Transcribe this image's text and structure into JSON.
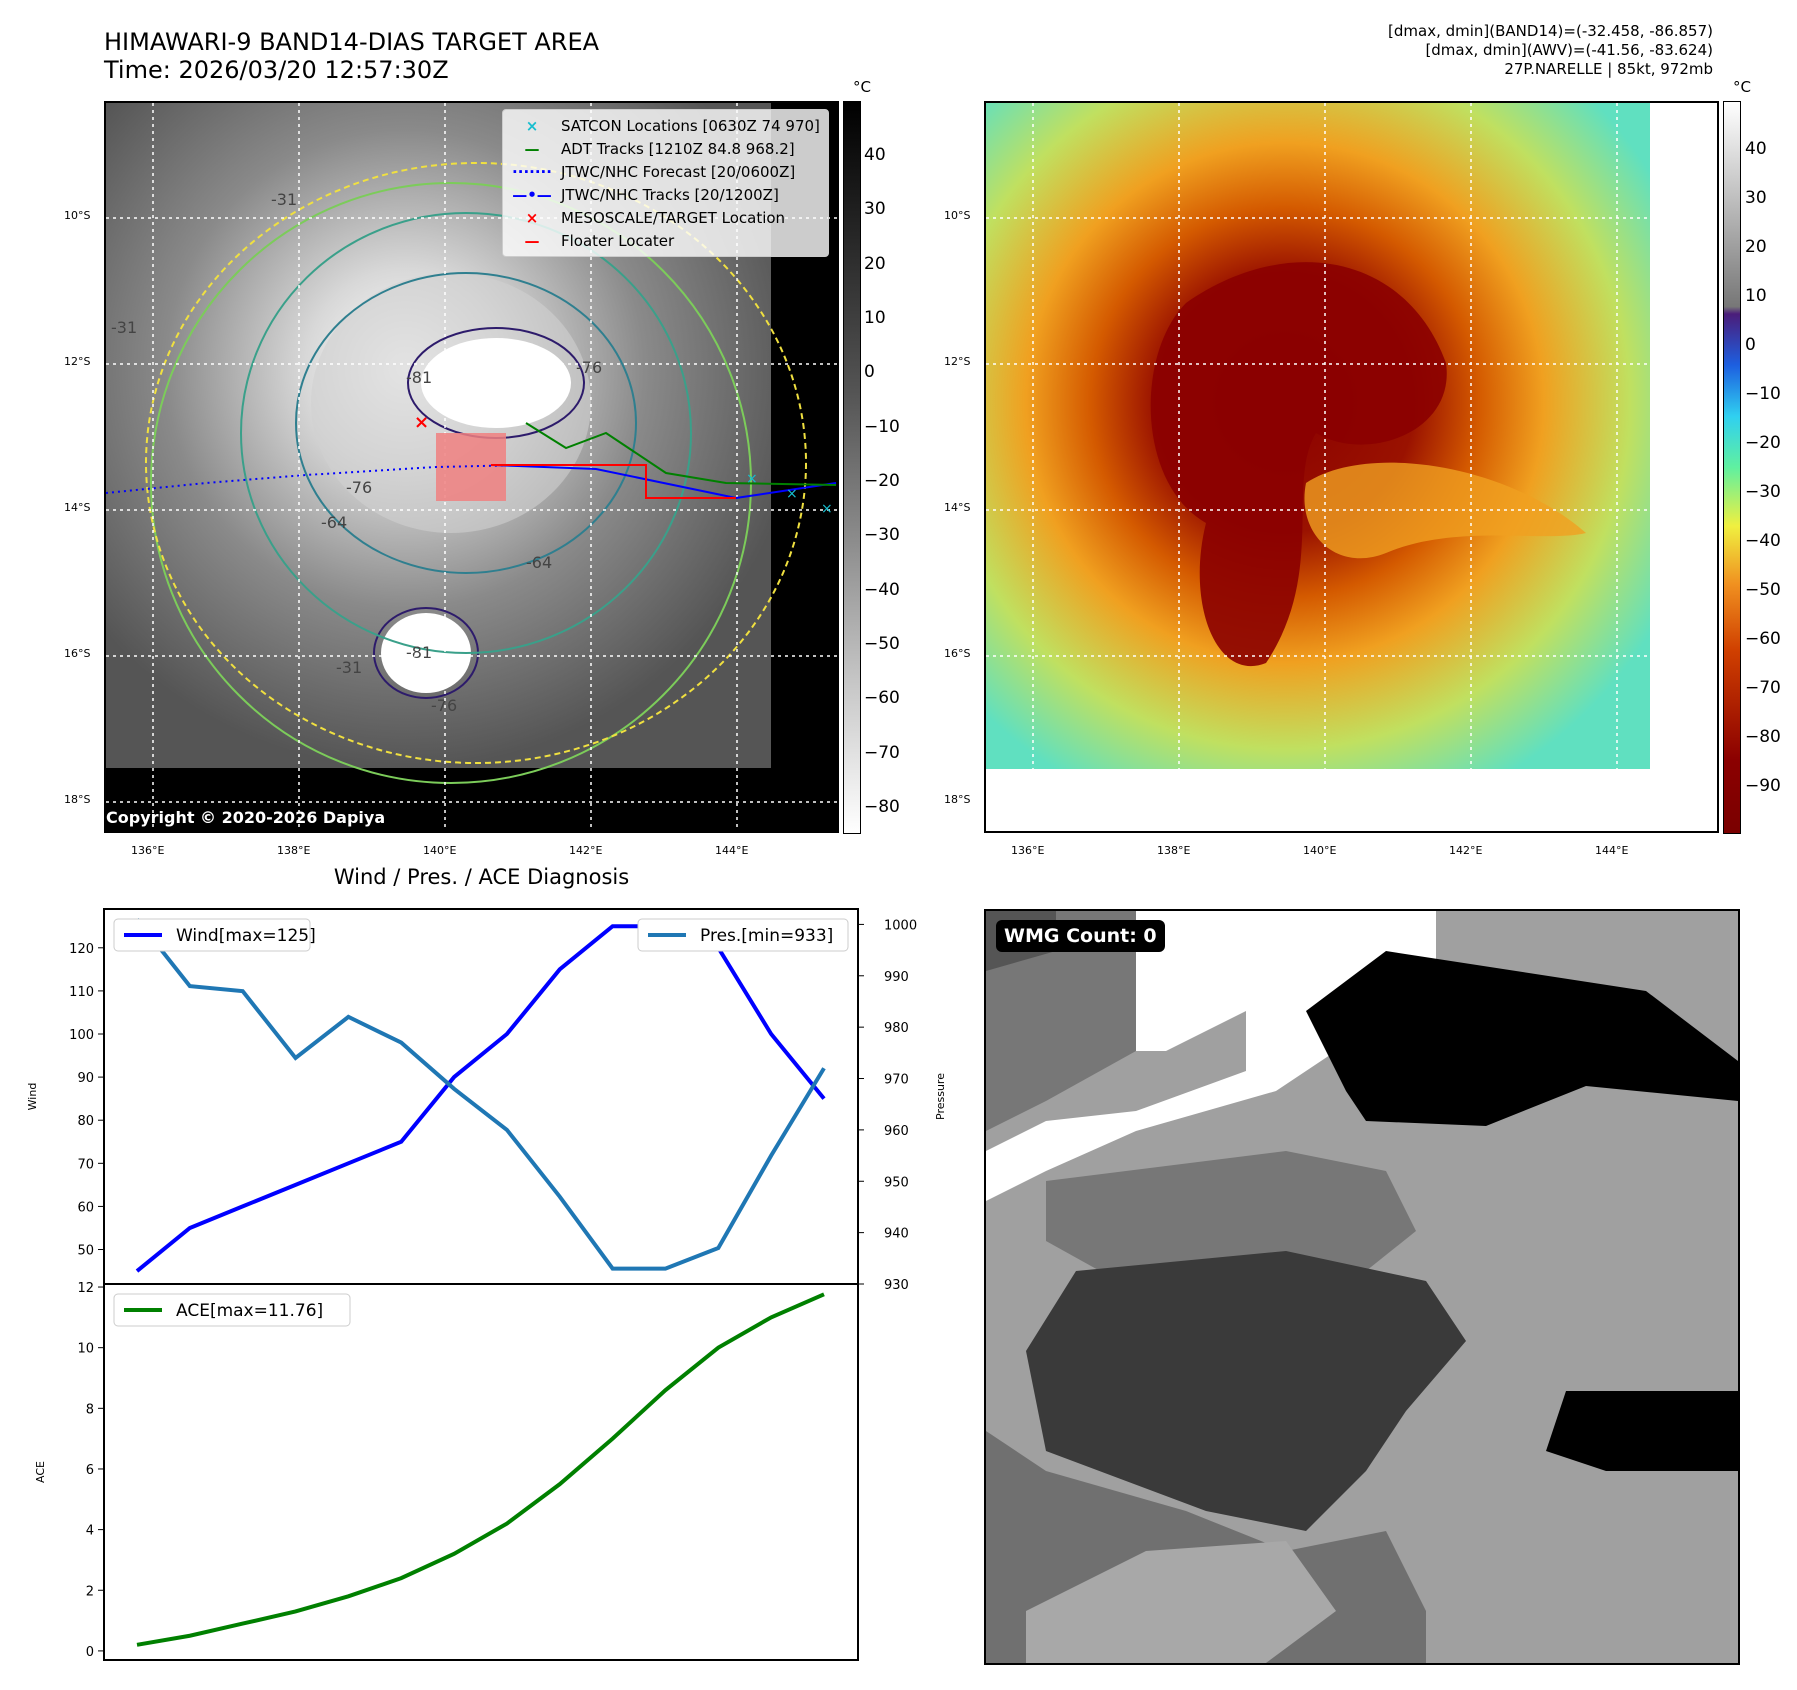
{
  "title_line1": "HIMAWARI-9 BAND14-DIAS TARGET AREA",
  "title_line2": "Time: 2026/03/20 12:57:30Z",
  "header_right": {
    "line1": "[dmax, dmin](BAND14)=(-32.458, -86.857)",
    "line2": "[dmax, dmin](AWV)=(-41.56, -83.624)",
    "line3": "27P.NARELLE | 85kt, 972mb"
  },
  "unit_label": "°C",
  "map": {
    "lat_labels": [
      "10°S",
      "12°S",
      "14°S",
      "16°S",
      "18°S"
    ],
    "lon_labels": [
      "136°E",
      "138°E",
      "140°E",
      "142°E",
      "144°E"
    ]
  },
  "colorbar_left_ticks": [
    "40",
    "30",
    "20",
    "10",
    "0",
    "−10",
    "−20",
    "−30",
    "−40",
    "−50",
    "−60",
    "−70",
    "−80"
  ],
  "colorbar_right_ticks": [
    "40",
    "30",
    "20",
    "10",
    "0",
    "−10",
    "−20",
    "−30",
    "−40",
    "−50",
    "−60",
    "−70",
    "−80",
    "−90"
  ],
  "legend_map": [
    {
      "label": "SATCON Locations [0630Z 74 970]",
      "symbol": "×",
      "color": "#17becf"
    },
    {
      "label": "ADT Tracks [1210Z 84.8 968.2]",
      "symbol": "—",
      "color": "#008000"
    },
    {
      "label": "JTWC/NHC Forecast [20/0600Z]",
      "symbol": "·······",
      "color": "#0000ff"
    },
    {
      "label": "JTWC/NHC Tracks [20/1200Z]",
      "symbol": "—•—",
      "color": "#0000ff"
    },
    {
      "label": "MESOSCALE/TARGET Location",
      "symbol": "×",
      "color": "#ff0000"
    },
    {
      "label": "Floater Locater",
      "symbol": "—",
      "color": "#ff0000"
    }
  ],
  "contour_labels": [
    "-81",
    "-76",
    "-76",
    "-64",
    "-31",
    "-31",
    "-31",
    "-81",
    "-76",
    "-64"
  ],
  "copyright": "Copyright © 2020-2026 Dapiya",
  "wmg_label": "WMG Count: 0",
  "chart_data": [
    {
      "type": "line",
      "title": "Wind / Pres. / ACE Diagnosis",
      "xlabel": "",
      "ylabel": "Wind",
      "y2label": "Pressure",
      "ylim": [
        42,
        129
      ],
      "y2lim": [
        930,
        1003
      ],
      "yticks": [
        50,
        60,
        70,
        80,
        90,
        100,
        110,
        120
      ],
      "y2ticks": [
        930,
        940,
        950,
        960,
        970,
        980,
        990,
        1000
      ],
      "x": [
        0,
        1,
        2,
        3,
        4,
        5,
        6,
        7,
        8,
        9,
        10,
        11,
        12,
        13
      ],
      "series": [
        {
          "name": "Wind[max=125]",
          "color": "#0000ff",
          "axis": "left",
          "values": [
            45,
            55,
            60,
            65,
            70,
            75,
            90,
            100,
            115,
            125,
            125,
            120,
            100,
            85
          ]
        },
        {
          "name": "Pres.[min=933]",
          "color": "#1f77b4",
          "axis": "right",
          "values": [
            1001,
            988,
            987,
            974,
            982,
            977,
            968,
            960,
            947,
            933,
            933,
            937,
            955,
            972
          ]
        }
      ]
    },
    {
      "type": "line",
      "title": "",
      "ylabel": "ACE",
      "ylim": [
        -0.3,
        12.1
      ],
      "yticks": [
        0,
        2,
        4,
        6,
        8,
        10,
        12
      ],
      "x": [
        0,
        1,
        2,
        3,
        4,
        5,
        6,
        7,
        8,
        9,
        10,
        11,
        12,
        13
      ],
      "series": [
        {
          "name": "ACE[max=11.76]",
          "color": "#008000",
          "values": [
            0.2,
            0.5,
            0.9,
            1.3,
            1.8,
            2.4,
            3.2,
            4.2,
            5.5,
            7.0,
            8.6,
            10.0,
            11.0,
            11.76
          ]
        }
      ]
    }
  ]
}
